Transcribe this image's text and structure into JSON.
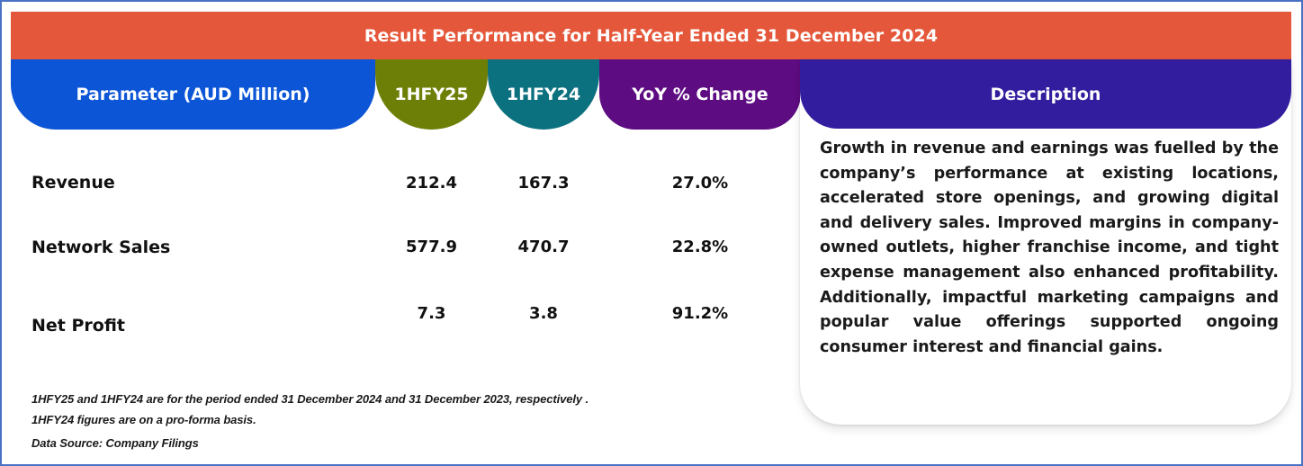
{
  "title": "Result Performance for Half-Year Ended 31 December 2024",
  "columns": {
    "parameter": "Parameter (AUD Million)",
    "h1fy25": "1HFY25",
    "h1fy24": "1HFY24",
    "yoy": "YoY % Change",
    "description": "Description"
  },
  "rows": [
    {
      "label": "Revenue",
      "h1fy25": "212.4",
      "h1fy24": "167.3",
      "yoy": "27.0%"
    },
    {
      "label": "Network Sales",
      "h1fy25": "577.9",
      "h1fy24": "470.7",
      "yoy": "22.8%"
    },
    {
      "label": "Net Profit",
      "h1fy25": "7.3",
      "h1fy24": "3.8",
      "yoy": "91.2%"
    }
  ],
  "description": "Growth in revenue and earnings was fuelled by the company’s performance at existing locations, accelerated store openings, and growing digital and delivery sales. Improved margins in company-owned outlets, higher franchise income, and tight expense management also enhanced profitability. Additionally, impactful marketing campaigns and popular value offerings supported ongoing consumer interest and financial gains.",
  "notes": {
    "line1": "1HFY25 and 1HFY24 are for the period ended 31 December 2024 and 31 December 2023, respectively .",
    "line2": "1HFY24 figures are on a pro-forma basis.",
    "source": "Data Source: Company Filings"
  },
  "colors": {
    "title_band": "#e5573a",
    "parameter": "#0b55d6",
    "h1fy25": "#6e7f07",
    "h1fy24": "#0c717f",
    "yoy": "#5e0c82",
    "description": "#321d9e",
    "frame": "#4a72c4"
  }
}
